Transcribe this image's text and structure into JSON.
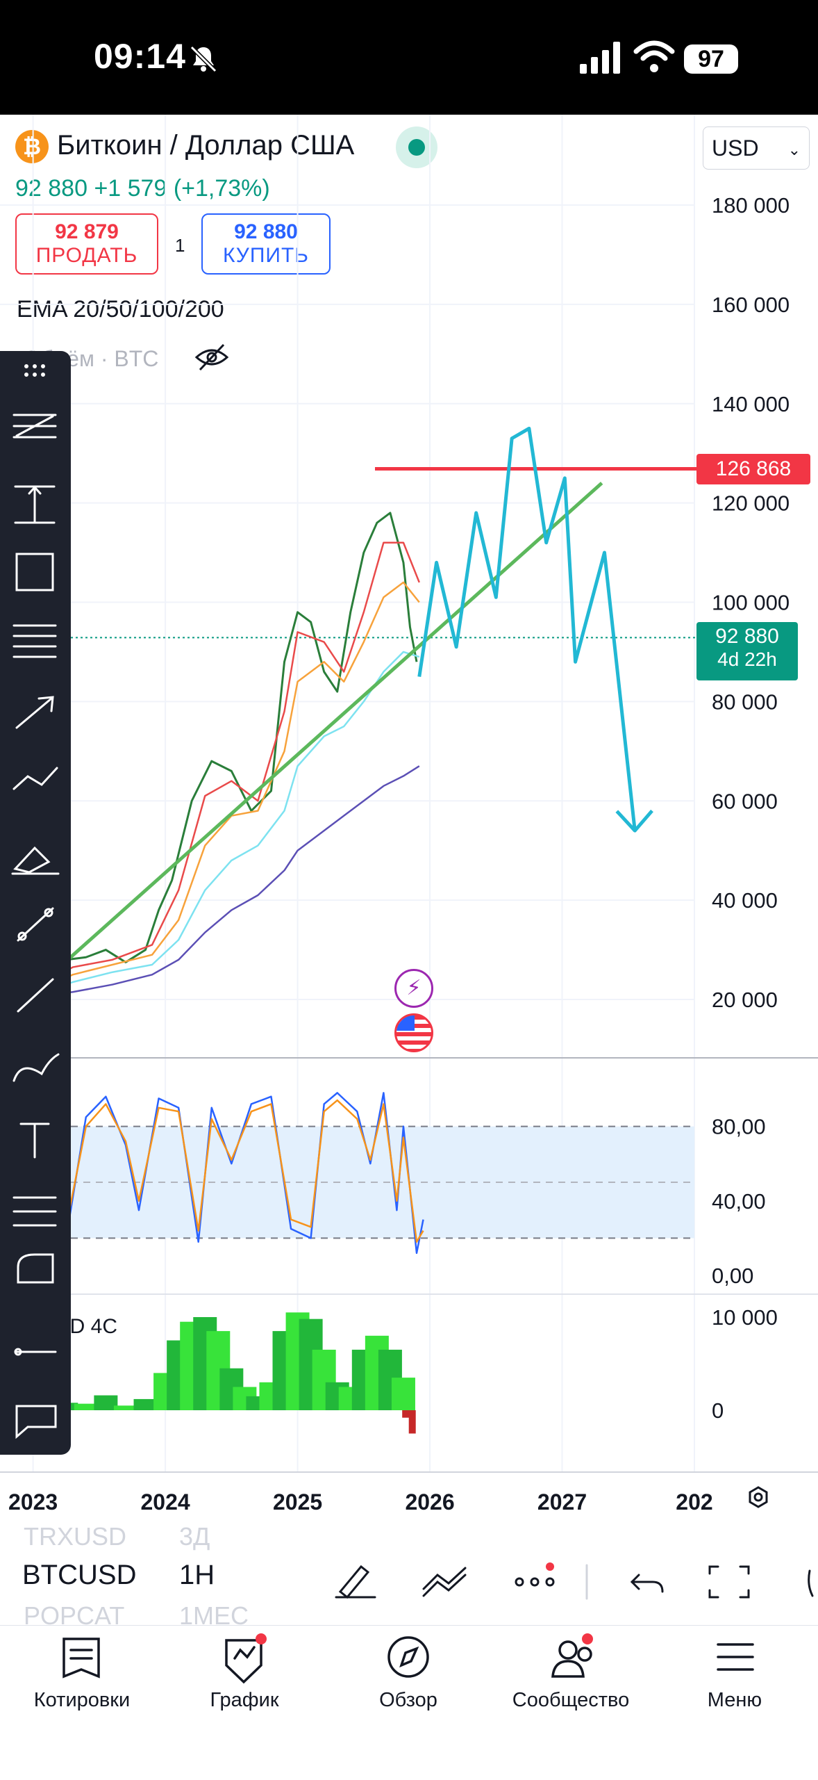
{
  "status": {
    "time": "09:14",
    "battery": "97"
  },
  "header": {
    "coin_glyph": "₿",
    "title": "Биткоин / Доллар США",
    "price_line": "92 880  +1 579 (+1,73%)",
    "sell_price": "92 879",
    "sell_label": "ПРОДАТЬ",
    "spread": "1",
    "buy_price": "92 880",
    "buy_label": "КУПИТЬ",
    "currency": "USD",
    "indicator_ema": "EMA 20/50/100/200",
    "indicator_volume": "Объём · BTC"
  },
  "chart_data": [
    {
      "type": "line",
      "title": "",
      "y_ticks": [
        "180 000",
        "160 000",
        "140 000",
        "120 000",
        "100 000",
        "80 000",
        "60 000",
        "40 000",
        "20 000"
      ],
      "ylim": [
        0,
        200000
      ],
      "x_ticks": [
        "2023",
        "2024",
        "2025",
        "2026",
        "2027",
        "202"
      ],
      "xlim": [
        2022.75,
        2028.0
      ],
      "resistance_level": {
        "value": 126868,
        "label": "126 868"
      },
      "last_price": {
        "value": 92880,
        "label": "92 880",
        "countdown": "4d 22h"
      },
      "series": [
        {
          "color": "#2a7e3a",
          "x": [
            2022.8,
            2022.95,
            2023.1,
            2023.25,
            2023.4,
            2023.55,
            2023.7,
            2023.85,
            2023.95,
            2024.05,
            2024.2,
            2024.35,
            2024.5,
            2024.65,
            2024.8,
            2024.9,
            2025.0,
            2025.1,
            2025.2,
            2025.3,
            2025.4,
            2025.5,
            2025.6,
            2025.7,
            2025.8,
            2025.85,
            2025.9
          ],
          "y": [
            17000,
            21000,
            27000,
            28000,
            28500,
            30000,
            27500,
            30000,
            38000,
            44000,
            60000,
            68000,
            66000,
            58000,
            62000,
            88000,
            98000,
            96000,
            86000,
            82000,
            98000,
            110000,
            116000,
            118000,
            108000,
            95000,
            88000
          ]
        },
        {
          "color": "#e94a4a",
          "x": [
            2022.8,
            2023.0,
            2023.3,
            2023.6,
            2023.9,
            2024.1,
            2024.3,
            2024.5,
            2024.7,
            2024.9,
            2025.0,
            2025.2,
            2025.35,
            2025.5,
            2025.65,
            2025.8,
            2025.92
          ],
          "y": [
            18000,
            22000,
            26500,
            28000,
            31000,
            42000,
            61000,
            64000,
            60000,
            78000,
            94000,
            92000,
            86000,
            98000,
            112000,
            112000,
            104000
          ]
        },
        {
          "color": "#f7a23b",
          "x": [
            2022.8,
            2023.0,
            2023.3,
            2023.6,
            2023.9,
            2024.1,
            2024.3,
            2024.5,
            2024.7,
            2024.9,
            2025.0,
            2025.2,
            2025.35,
            2025.5,
            2025.65,
            2025.8,
            2025.92
          ],
          "y": [
            18500,
            21000,
            25000,
            27000,
            29000,
            36000,
            51000,
            57000,
            58000,
            70000,
            84000,
            88000,
            84000,
            92000,
            101000,
            104000,
            100000
          ]
        },
        {
          "color": "#7de2f0",
          "x": [
            2022.8,
            2023.0,
            2023.3,
            2023.6,
            2023.9,
            2024.1,
            2024.3,
            2024.5,
            2024.7,
            2024.9,
            2025.0,
            2025.2,
            2025.35,
            2025.5,
            2025.65,
            2025.8,
            2025.92
          ],
          "y": [
            19000,
            20500,
            23500,
            25500,
            27000,
            32000,
            42000,
            48000,
            51000,
            58000,
            67000,
            73000,
            75000,
            80000,
            86000,
            90000,
            89000
          ]
        },
        {
          "color": "#5b4fb5",
          "x": [
            2022.8,
            2023.0,
            2023.3,
            2023.6,
            2023.9,
            2024.1,
            2024.3,
            2024.5,
            2024.7,
            2024.9,
            2025.0,
            2025.2,
            2025.35,
            2025.5,
            2025.65,
            2025.8,
            2025.92
          ],
          "y": [
            20000,
            20500,
            21500,
            23000,
            25000,
            28000,
            33500,
            38000,
            41000,
            46000,
            50000,
            54000,
            57000,
            60000,
            63000,
            65000,
            67000
          ]
        },
        {
          "color": "#5cb85c",
          "x": [
            2022.8,
            2027.3
          ],
          "y": [
            17000,
            124000
          ]
        },
        {
          "color": "#22b8d4",
          "x": [
            2025.92,
            2026.05,
            2026.2,
            2026.35,
            2026.5,
            2026.62,
            2026.75,
            2026.88,
            2027.02,
            2027.1,
            2027.32,
            2027.55,
            2027.68
          ],
          "y": [
            85000,
            108000,
            91000,
            118000,
            101000,
            133000,
            135000,
            112000,
            125000,
            88000,
            110000,
            54000,
            58000
          ]
        }
      ]
    },
    {
      "type": "line",
      "title": "",
      "y_ticks": [
        "80,00",
        "40,00",
        "0,00"
      ],
      "ylim": [
        0,
        100
      ],
      "overbought": 80,
      "oversold": 20,
      "mid": 50,
      "series": [
        {
          "color": "#2962ff",
          "x": [
            2022.75,
            2022.95,
            2023.1,
            2023.25,
            2023.4,
            2023.55,
            2023.7,
            2023.8,
            2023.95,
            2024.1,
            2024.25,
            2024.35,
            2024.5,
            2024.65,
            2024.8,
            2024.95,
            2025.1,
            2025.2,
            2025.3,
            2025.45,
            2025.55,
            2025.65,
            2025.75,
            2025.8,
            2025.9,
            2025.95
          ],
          "y": [
            60,
            85,
            88,
            20,
            85,
            96,
            70,
            35,
            95,
            90,
            18,
            90,
            60,
            92,
            96,
            25,
            20,
            92,
            98,
            88,
            60,
            98,
            35,
            80,
            12,
            30
          ]
        },
        {
          "color": "#f7931a",
          "x": [
            2022.75,
            2022.95,
            2023.1,
            2023.25,
            2023.4,
            2023.55,
            2023.7,
            2023.8,
            2023.95,
            2024.1,
            2024.25,
            2024.35,
            2024.5,
            2024.65,
            2024.8,
            2024.95,
            2025.1,
            2025.2,
            2025.3,
            2025.45,
            2025.55,
            2025.65,
            2025.75,
            2025.8,
            2025.9,
            2025.95
          ],
          "y": [
            65,
            80,
            84,
            26,
            80,
            92,
            72,
            40,
            90,
            88,
            24,
            84,
            62,
            88,
            92,
            30,
            26,
            88,
            94,
            84,
            62,
            92,
            40,
            74,
            18,
            24
          ]
        }
      ]
    },
    {
      "type": "bar",
      "title": "MACD 4C",
      "y_ticks": [
        "10 000",
        "0"
      ],
      "ylim": [
        -3000,
        11000
      ],
      "x": [
        2022.8,
        2022.95,
        2023.1,
        2023.25,
        2023.4,
        2023.55,
        2023.7,
        2023.85,
        2024.0,
        2024.1,
        2024.2,
        2024.3,
        2024.4,
        2024.5,
        2024.6,
        2024.7,
        2024.8,
        2024.9,
        2025.0,
        2025.1,
        2025.2,
        2025.3,
        2025.4,
        2025.5,
        2025.6,
        2025.7,
        2025.8,
        2025.88,
        2025.93
      ],
      "values": [
        300,
        1500,
        2000,
        800,
        700,
        1600,
        500,
        1200,
        4000,
        7500,
        9500,
        10000,
        8500,
        4500,
        2500,
        1500,
        3000,
        8500,
        10500,
        9800,
        6500,
        3000,
        2500,
        6500,
        8000,
        6500,
        3500,
        -800,
        -2500
      ]
    }
  ],
  "bottom": {
    "symbols": [
      {
        "symbol": "TRXUSD",
        "interval": "3Д"
      },
      {
        "symbol": "BTCUSD",
        "interval": "1H"
      },
      {
        "symbol": "POPCAT",
        "interval": "1МЕС"
      }
    ],
    "tabs": [
      {
        "label": "Котировки",
        "icon": "quotes-icon"
      },
      {
        "label": "График",
        "icon": "chart-icon"
      },
      {
        "label": "Обзор",
        "icon": "compass-icon"
      },
      {
        "label": "Сообщество",
        "icon": "community-icon"
      },
      {
        "label": "Меню",
        "icon": "menu-icon"
      }
    ]
  }
}
